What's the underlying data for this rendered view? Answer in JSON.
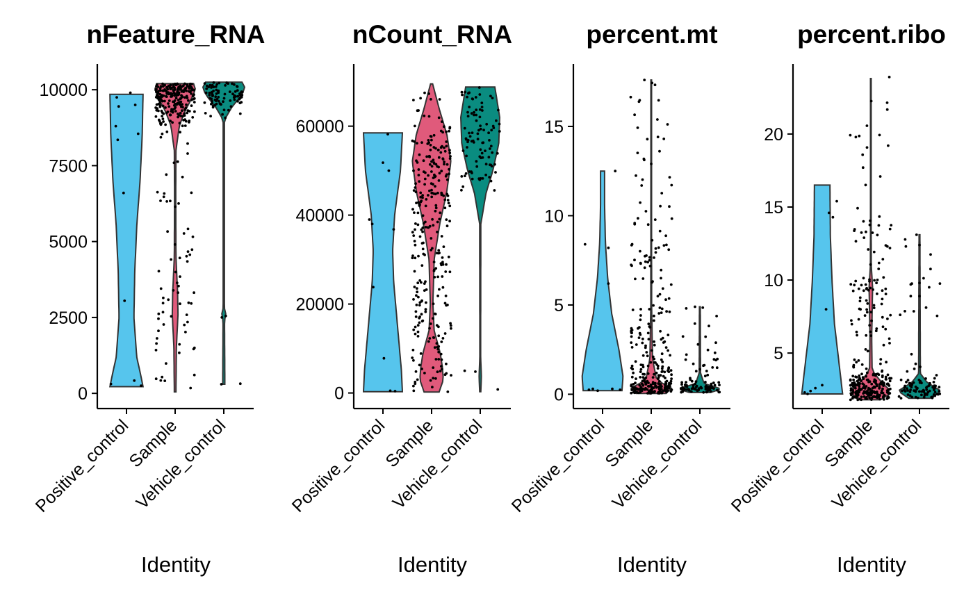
{
  "chart_data": [
    {
      "type": "violin",
      "title": "nFeature_RNA",
      "xlabel": "Identity",
      "ylabel": "",
      "categories": [
        "Positive_control",
        "Sample",
        "Vehicle_control"
      ],
      "colors": [
        "#56C5ED",
        "#E05A7B",
        "#0A8C80"
      ],
      "ylim": [
        -500,
        10850
      ],
      "yticks": [
        0,
        2500,
        5000,
        7500,
        10000
      ],
      "ytick_labels": [
        "0",
        "2500",
        "5000",
        "7500",
        "10000"
      ],
      "series": [
        {
          "name": "Positive_control",
          "ymin": 220,
          "ymax": 9850,
          "max_halfwidth": 0.34,
          "profile": [
            [
              220,
              1.0
            ],
            [
              500,
              0.9
            ],
            [
              1200,
              0.62
            ],
            [
              2500,
              0.45
            ],
            [
              4000,
              0.5
            ],
            [
              5500,
              0.62
            ],
            [
              7000,
              0.82
            ],
            [
              8500,
              0.95
            ],
            [
              9850,
              1.0
            ]
          ],
          "points": [
            [
              -0.32,
              310
            ],
            [
              -0.2,
              9750
            ],
            [
              -0.16,
              9450
            ],
            [
              -0.22,
              8800
            ],
            [
              -0.18,
              8350
            ],
            [
              -0.06,
              6600
            ],
            [
              -0.04,
              3050
            ],
            [
              0.08,
              9900
            ],
            [
              0.18,
              9500
            ],
            [
              0.24,
              8550
            ],
            [
              0.16,
              420
            ],
            [
              0.3,
              250
            ]
          ]
        },
        {
          "name": "Sample",
          "ymin": 50,
          "ymax": 10200,
          "max_halfwidth": 0.42,
          "profile": [
            [
              50,
              0.04
            ],
            [
              1500,
              0.06
            ],
            [
              2600,
              0.14
            ],
            [
              3300,
              0.12
            ],
            [
              4500,
              0.04
            ],
            [
              6500,
              0.03
            ],
            [
              8000,
              0.04
            ],
            [
              8800,
              0.2
            ],
            [
              9300,
              0.48
            ],
            [
              9700,
              0.8
            ],
            [
              10000,
              1.0
            ],
            [
              10200,
              0.9
            ]
          ],
          "seed": 7,
          "n_top": 230,
          "n_mid": 70
        },
        {
          "name": "Vehicle_control",
          "ymin": 300,
          "ymax": 10250,
          "max_halfwidth": 0.44,
          "profile": [
            [
              300,
              0.05
            ],
            [
              2400,
              0.035
            ],
            [
              2600,
              0.1
            ],
            [
              2800,
              0.03
            ],
            [
              9000,
              0.03
            ],
            [
              9400,
              0.35
            ],
            [
              9800,
              0.8
            ],
            [
              10050,
              1.0
            ],
            [
              10250,
              0.85
            ]
          ],
          "points": [
            [
              -0.04,
              2500
            ],
            [
              0.04,
              2550
            ],
            [
              0.34,
              320
            ],
            [
              -0.05,
              300
            ]
          ],
          "seed": 13,
          "n_top": 90
        }
      ]
    },
    {
      "type": "violin",
      "title": "nCount_RNA",
      "xlabel": "Identity",
      "ylabel": "",
      "categories": [
        "Positive_control",
        "Sample",
        "Vehicle_control"
      ],
      "colors": [
        "#56C5ED",
        "#E05A7B",
        "#0A8C80"
      ],
      "ylim": [
        -3500,
        74000
      ],
      "yticks": [
        0,
        20000,
        40000,
        60000
      ],
      "ytick_labels": [
        "0",
        "20000",
        "40000",
        "60000"
      ],
      "series": [
        {
          "name": "Positive_control",
          "ymin": 300,
          "ymax": 58500,
          "max_halfwidth": 0.4,
          "profile": [
            [
              300,
              1.0
            ],
            [
              5000,
              0.95
            ],
            [
              15000,
              0.75
            ],
            [
              25000,
              0.55
            ],
            [
              32000,
              0.5
            ],
            [
              40000,
              0.6
            ],
            [
              50000,
              0.9
            ],
            [
              58500,
              1.0
            ]
          ],
          "points": [
            [
              0.1,
              58200
            ],
            [
              -0.0,
              51800
            ],
            [
              0.12,
              50000
            ],
            [
              -0.28,
              39000
            ],
            [
              -0.22,
              38000
            ],
            [
              0.22,
              36800
            ],
            [
              -0.2,
              23800
            ],
            [
              0.02,
              7800
            ],
            [
              0.15,
              500
            ],
            [
              0.25,
              400
            ]
          ]
        },
        {
          "name": "Sample",
          "ymin": 200,
          "ymax": 69500,
          "max_halfwidth": 0.44,
          "profile": [
            [
              200,
              0.35
            ],
            [
              3000,
              0.55
            ],
            [
              6000,
              0.5
            ],
            [
              9000,
              0.4
            ],
            [
              14000,
              0.12
            ],
            [
              20000,
              0.06
            ],
            [
              30000,
              0.12
            ],
            [
              38000,
              0.38
            ],
            [
              45000,
              0.7
            ],
            [
              52000,
              0.9
            ],
            [
              58000,
              0.72
            ],
            [
              64000,
              0.35
            ],
            [
              69500,
              0.05
            ]
          ],
          "seed": 21,
          "n_top": 230,
          "n_mid": 70
        },
        {
          "name": "Vehicle_control",
          "ymin": 300,
          "ymax": 68800,
          "max_halfwidth": 0.4,
          "profile": [
            [
              300,
              0.03
            ],
            [
              4000,
              0.06
            ],
            [
              8000,
              0.02
            ],
            [
              38000,
              0.03
            ],
            [
              45000,
              0.3
            ],
            [
              50000,
              0.65
            ],
            [
              56000,
              0.95
            ],
            [
              62000,
              1.0
            ],
            [
              68800,
              0.75
            ]
          ],
          "points": [
            [
              -0.32,
              5000
            ],
            [
              -0.1,
              4800
            ],
            [
              0.36,
              800
            ]
          ],
          "seed": 33,
          "n_top": 95
        }
      ]
    },
    {
      "type": "violin",
      "title": "percent.mt",
      "xlabel": "Identity",
      "ylabel": "",
      "categories": [
        "Positive_control",
        "Sample",
        "Vehicle_control"
      ],
      "colors": [
        "#56C5ED",
        "#E05A7B",
        "#0A8C80"
      ],
      "ylim": [
        -0.8,
        18.5
      ],
      "yticks": [
        0,
        5,
        10,
        15
      ],
      "ytick_labels": [
        "0",
        "5",
        "10",
        "15"
      ],
      "series": [
        {
          "name": "Positive_control",
          "ymin": 0.2,
          "ymax": 12.5,
          "max_halfwidth": 0.42,
          "profile": [
            [
              0.2,
              0.95
            ],
            [
              1.0,
              1.0
            ],
            [
              2.5,
              0.8
            ],
            [
              4.5,
              0.45
            ],
            [
              6.5,
              0.25
            ],
            [
              8.5,
              0.14
            ],
            [
              10.5,
              0.1
            ],
            [
              12.5,
              0.1
            ]
          ],
          "points": [
            [
              -0.36,
              8.4
            ],
            [
              0.12,
              8.2
            ],
            [
              0.12,
              6.2
            ],
            [
              0.26,
              12.5
            ],
            [
              -0.28,
              0.25
            ],
            [
              -0.2,
              0.3
            ],
            [
              -0.1,
              0.2
            ],
            [
              0.2,
              0.3
            ],
            [
              0.36,
              0.25
            ]
          ]
        },
        {
          "name": "Sample",
          "ymin": 0.05,
          "ymax": 17.6,
          "max_halfwidth": 0.44,
          "profile": [
            [
              0.05,
              0.7
            ],
            [
              0.3,
              1.0
            ],
            [
              0.8,
              0.25
            ],
            [
              2.0,
              0.06
            ],
            [
              5.0,
              0.02
            ],
            [
              10.0,
              0.015
            ],
            [
              17.6,
              0.015
            ]
          ],
          "points": [
            [
              -0.14,
              17.6
            ],
            [
              0.0,
              12.9
            ],
            [
              -0.4,
              7.2
            ],
            [
              0.36,
              8.1
            ],
            [
              0.3,
              5.3
            ],
            [
              0.2,
              6.5
            ]
          ],
          "seed": 41,
          "n_low": 230,
          "n_scatter": 70
        },
        {
          "name": "Vehicle_control",
          "ymin": 0.1,
          "ymax": 4.9,
          "max_halfwidth": 0.44,
          "profile": [
            [
              0.1,
              0.5
            ],
            [
              0.3,
              1.0
            ],
            [
              0.6,
              0.2
            ],
            [
              1.2,
              0.03
            ],
            [
              4.9,
              0.02
            ]
          ],
          "points": [
            [
              -0.1,
              4.9
            ],
            [
              0.06,
              4.85
            ],
            [
              0.0,
              1.4
            ],
            [
              0.14,
              1.3
            ],
            [
              0.26,
              1.5
            ],
            [
              -0.2,
              0.9
            ]
          ],
          "seed": 57,
          "n_low": 95
        }
      ]
    },
    {
      "type": "violin",
      "title": "percent.ribo",
      "xlabel": "Identity",
      "ylabel": "",
      "categories": [
        "Positive_control",
        "Sample",
        "Vehicle_control"
      ],
      "colors": [
        "#56C5ED",
        "#E05A7B",
        "#0A8C80"
      ],
      "ylim": [
        1.2,
        24.8
      ],
      "yticks": [
        5,
        10,
        15,
        20
      ],
      "ytick_labels": [
        "5",
        "10",
        "15",
        "20"
      ],
      "series": [
        {
          "name": "Positive_control",
          "ymin": 2.2,
          "ymax": 16.5,
          "max_halfwidth": 0.42,
          "profile": [
            [
              2.2,
              1.0
            ],
            [
              4.0,
              0.85
            ],
            [
              7.0,
              0.6
            ],
            [
              10.0,
              0.48
            ],
            [
              13.0,
              0.4
            ],
            [
              16.5,
              0.38
            ]
          ],
          "points": [
            [
              -0.36,
              2.3
            ],
            [
              -0.24,
              2.4
            ],
            [
              -0.14,
              2.6
            ],
            [
              0.0,
              2.8
            ],
            [
              0.08,
              8.0
            ],
            [
              0.14,
              14.6
            ],
            [
              0.22,
              14.3
            ],
            [
              0.3,
              15.4
            ],
            [
              -0.3,
              2.2
            ]
          ]
        },
        {
          "name": "Sample",
          "ymin": 1.8,
          "ymax": 23.8,
          "max_halfwidth": 0.44,
          "profile": [
            [
              1.8,
              0.45
            ],
            [
              2.3,
              1.0
            ],
            [
              3.0,
              0.5
            ],
            [
              3.8,
              0.06
            ],
            [
              6.0,
              0.04
            ],
            [
              8.5,
              0.07
            ],
            [
              9.5,
              0.08
            ],
            [
              11,
              0.02
            ],
            [
              15,
              0.015
            ],
            [
              23.8,
              0.015
            ]
          ],
          "points": [
            [
              0.38,
              23.9
            ],
            [
              -0.16,
              17.7
            ],
            [
              -0.14,
              12.9
            ],
            [
              0.34,
              12.3
            ]
          ],
          "seed": 63,
          "n_low": 230,
          "n_scatter": 70
        },
        {
          "name": "Vehicle_control",
          "ymin": 1.9,
          "ymax": 13.1,
          "max_halfwidth": 0.44,
          "profile": [
            [
              1.9,
              0.5
            ],
            [
              2.4,
              1.0
            ],
            [
              3.0,
              0.35
            ],
            [
              3.6,
              0.04
            ],
            [
              13.1,
              0.02
            ]
          ],
          "points": [
            [
              -0.06,
              13.1
            ],
            [
              0.0,
              12.4
            ],
            [
              -0.28,
              12.3
            ],
            [
              -0.18,
              9.7
            ],
            [
              0.0,
              9.8
            ],
            [
              0.0,
              8.9
            ],
            [
              -0.18,
              8.9
            ]
          ],
          "seed": 77,
          "n_low": 95
        }
      ]
    }
  ]
}
